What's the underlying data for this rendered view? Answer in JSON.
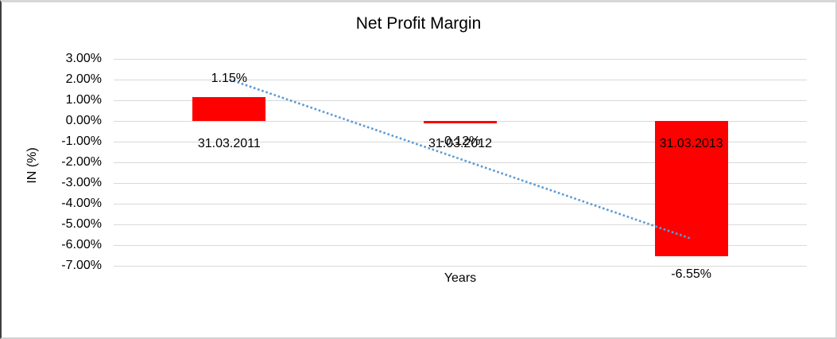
{
  "chart_data": {
    "type": "bar",
    "title": "Net Profit Margin",
    "xlabel": "Years",
    "ylabel": "IN (%)",
    "categories": [
      "31.03.2011",
      "31.03.2012",
      "31.03.2013"
    ],
    "values": [
      1.15,
      -0.12,
      -6.55
    ],
    "data_labels": [
      "1.15%",
      "-0.12%",
      "-6.55%"
    ],
    "ylim": [
      -7,
      3
    ],
    "ytick_step": 1,
    "ytick_labels": [
      "3.00%",
      "2.00%",
      "1.00%",
      "0.00%",
      "-1.00%",
      "-2.00%",
      "-3.00%",
      "-4.00%",
      "-5.00%",
      "-6.00%",
      "-7.00%"
    ],
    "grid": true,
    "legend": "none",
    "bar_color": "#FF0000",
    "grid_color": "#D9D9D9",
    "trendline": {
      "style": "dotted",
      "color": "#5B9BD5",
      "x": [
        1,
        3
      ],
      "y": [
        2.01,
        -5.69
      ]
    }
  }
}
